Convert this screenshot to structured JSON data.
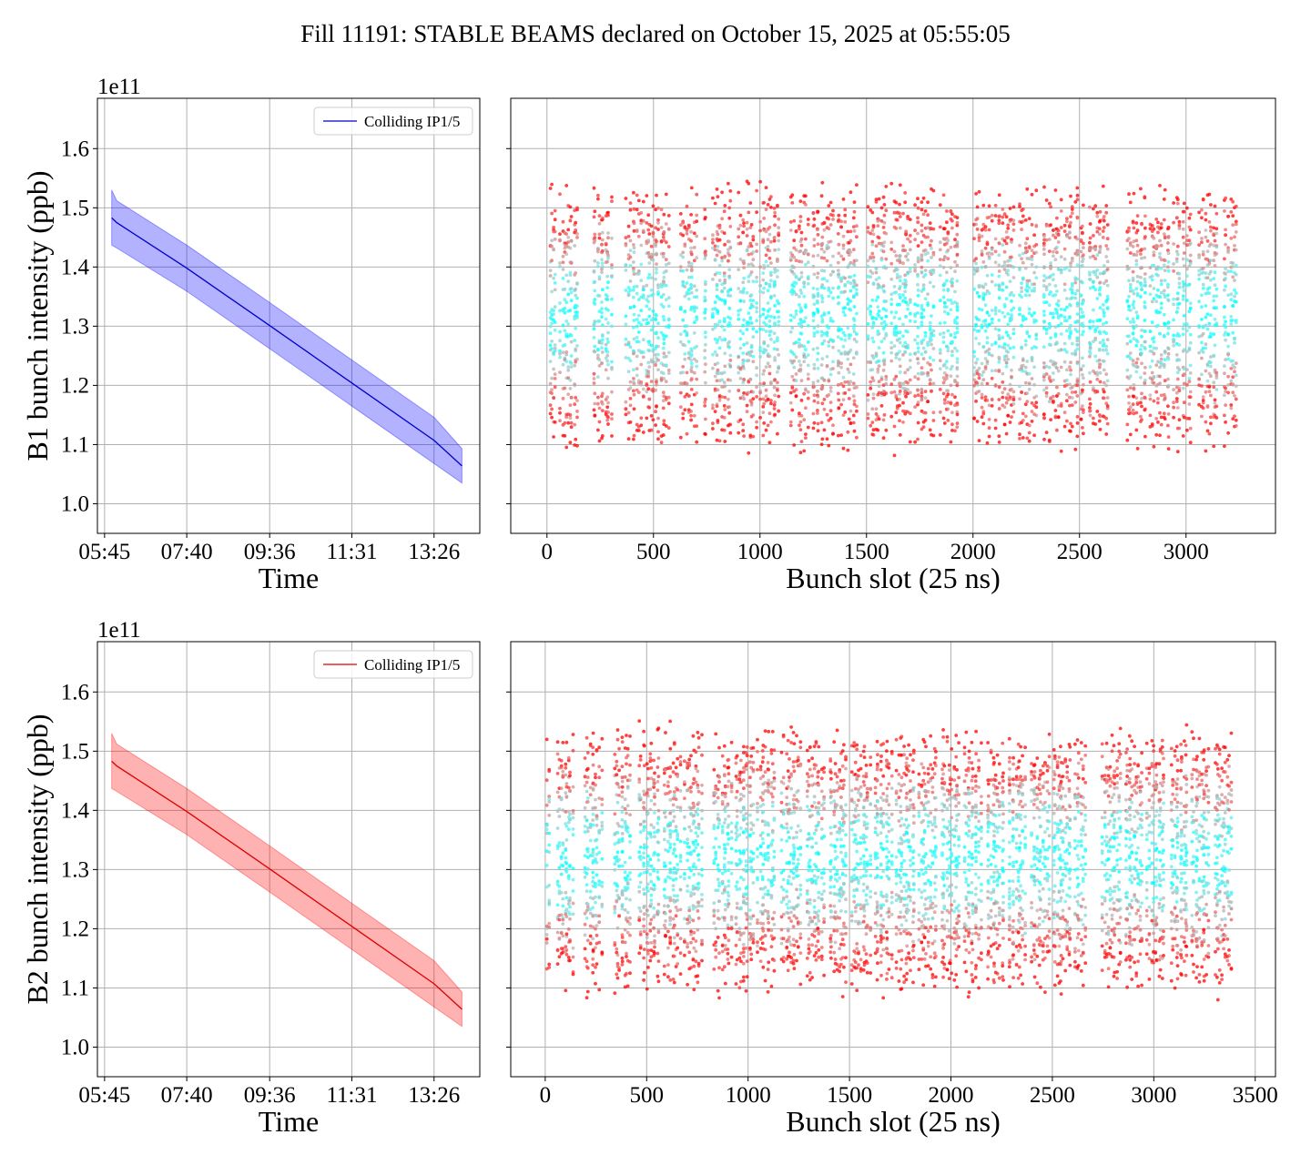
{
  "figure": {
    "title": "Fill 11191: STABLE BEAMS declared on October 15, 2025 at 05:55:05"
  },
  "chart_data": [
    {
      "type": "line",
      "panel": "B1 intensity vs time",
      "xlabel": "Time",
      "ylabel": "B1 bunch intensity (ppb)",
      "y_offset_text": "1e11",
      "x_ticks": [
        "05:45",
        "07:40",
        "09:36",
        "11:31",
        "13:26"
      ],
      "y_ticks": [
        1.0,
        1.1,
        1.2,
        1.3,
        1.4,
        1.5,
        1.6
      ],
      "ylim": [
        0.95,
        1.685
      ],
      "grid": true,
      "legend": "top-right",
      "series": [
        {
          "name": "Colliding IP1/5",
          "color": "#0000cc",
          "band_color": "#0000ff",
          "x": [
            "05:55",
            "06:02",
            "07:40",
            "09:36",
            "11:31",
            "13:26",
            "14:05"
          ],
          "mean": [
            1.483,
            1.475,
            1.398,
            1.301,
            1.204,
            1.107,
            1.064
          ],
          "band_upper": [
            1.53,
            1.512,
            1.437,
            1.34,
            1.243,
            1.146,
            1.093
          ],
          "band_lower": [
            1.437,
            1.432,
            1.359,
            1.262,
            1.165,
            1.068,
            1.035
          ]
        }
      ]
    },
    {
      "type": "scatter",
      "panel": "B1 intensity per bunch slot",
      "xlabel": "Bunch slot (25 ns)",
      "x_ticks": [
        0,
        500,
        1000,
        1500,
        2000,
        2500,
        3000
      ],
      "xlim": [
        -170,
        3420
      ],
      "ylim": [
        0.95,
        1.685
      ],
      "grid": true,
      "colormap": "rainbow (red = early/low, violet = late/high)",
      "trains": [
        {
          "start": 10,
          "end": 45
        },
        {
          "start": 60,
          "end": 150
        },
        {
          "start": 215,
          "end": 305
        },
        {
          "start": 370,
          "end": 455
        },
        {
          "start": 460,
          "end": 575
        },
        {
          "start": 620,
          "end": 705
        },
        {
          "start": 735,
          "end": 750
        },
        {
          "start": 775,
          "end": 870
        },
        {
          "start": 895,
          "end": 985
        },
        {
          "start": 1000,
          "end": 1095
        },
        {
          "start": 1140,
          "end": 1230
        },
        {
          "start": 1245,
          "end": 1345
        },
        {
          "start": 1360,
          "end": 1460
        },
        {
          "start": 1505,
          "end": 1600
        },
        {
          "start": 1615,
          "end": 1710
        },
        {
          "start": 1725,
          "end": 1820
        },
        {
          "start": 1845,
          "end": 1935
        },
        {
          "start": 2000,
          "end": 2090
        },
        {
          "start": 2105,
          "end": 2195
        },
        {
          "start": 2215,
          "end": 2300
        },
        {
          "start": 2325,
          "end": 2415
        },
        {
          "start": 2430,
          "end": 2525
        },
        {
          "start": 2540,
          "end": 2640
        },
        {
          "start": 2720,
          "end": 2815
        },
        {
          "start": 2830,
          "end": 2925
        },
        {
          "start": 2940,
          "end": 3025
        },
        {
          "start": 3060,
          "end": 3150
        },
        {
          "start": 3175,
          "end": 3240
        }
      ],
      "value_range": [
        1.02,
        1.62
      ]
    },
    {
      "type": "line",
      "panel": "B2 intensity vs time",
      "xlabel": "Time",
      "ylabel": "B2 bunch intensity (ppb)",
      "y_offset_text": "1e11",
      "x_ticks": [
        "05:45",
        "07:40",
        "09:36",
        "11:31",
        "13:26"
      ],
      "y_ticks": [
        1.0,
        1.1,
        1.2,
        1.3,
        1.4,
        1.5,
        1.6
      ],
      "ylim": [
        0.95,
        1.685
      ],
      "grid": true,
      "legend": "top-right",
      "series": [
        {
          "name": "Colliding IP1/5",
          "color": "#dd0000",
          "band_color": "#ff0000",
          "x": [
            "05:55",
            "06:02",
            "07:40",
            "09:36",
            "11:31",
            "13:26",
            "14:05"
          ],
          "mean": [
            1.483,
            1.475,
            1.398,
            1.301,
            1.204,
            1.107,
            1.064
          ],
          "band_upper": [
            1.53,
            1.512,
            1.437,
            1.34,
            1.243,
            1.146,
            1.093
          ],
          "band_lower": [
            1.437,
            1.432,
            1.359,
            1.262,
            1.165,
            1.068,
            1.035
          ]
        }
      ]
    },
    {
      "type": "scatter",
      "panel": "B2 intensity per bunch slot",
      "xlabel": "Bunch slot (25 ns)",
      "x_ticks": [
        0,
        500,
        1000,
        1500,
        2000,
        2500,
        3000,
        3500
      ],
      "xlim": [
        -170,
        3600
      ],
      "ylim": [
        0.95,
        1.685
      ],
      "grid": true,
      "colormap": "rainbow (red = early/low, violet = late/high)",
      "trains": [
        {
          "start": 5,
          "end": 20
        },
        {
          "start": 55,
          "end": 140
        },
        {
          "start": 190,
          "end": 280
        },
        {
          "start": 335,
          "end": 425
        },
        {
          "start": 460,
          "end": 565
        },
        {
          "start": 580,
          "end": 670
        },
        {
          "start": 685,
          "end": 775
        },
        {
          "start": 830,
          "end": 920
        },
        {
          "start": 935,
          "end": 1030
        },
        {
          "start": 1045,
          "end": 1135
        },
        {
          "start": 1165,
          "end": 1260
        },
        {
          "start": 1285,
          "end": 1375
        },
        {
          "start": 1400,
          "end": 1490
        },
        {
          "start": 1510,
          "end": 1605
        },
        {
          "start": 1620,
          "end": 1710
        },
        {
          "start": 1730,
          "end": 1825
        },
        {
          "start": 1840,
          "end": 1930
        },
        {
          "start": 1950,
          "end": 2045
        },
        {
          "start": 2060,
          "end": 2150
        },
        {
          "start": 2175,
          "end": 2265
        },
        {
          "start": 2280,
          "end": 2370
        },
        {
          "start": 2395,
          "end": 2485
        },
        {
          "start": 2500,
          "end": 2595
        },
        {
          "start": 2610,
          "end": 2665
        },
        {
          "start": 2745,
          "end": 2840
        },
        {
          "start": 2855,
          "end": 2945
        },
        {
          "start": 2965,
          "end": 3055
        },
        {
          "start": 3080,
          "end": 3170
        },
        {
          "start": 3185,
          "end": 3275
        },
        {
          "start": 3295,
          "end": 3385
        }
      ],
      "value_range": [
        1.02,
        1.65
      ]
    }
  ]
}
